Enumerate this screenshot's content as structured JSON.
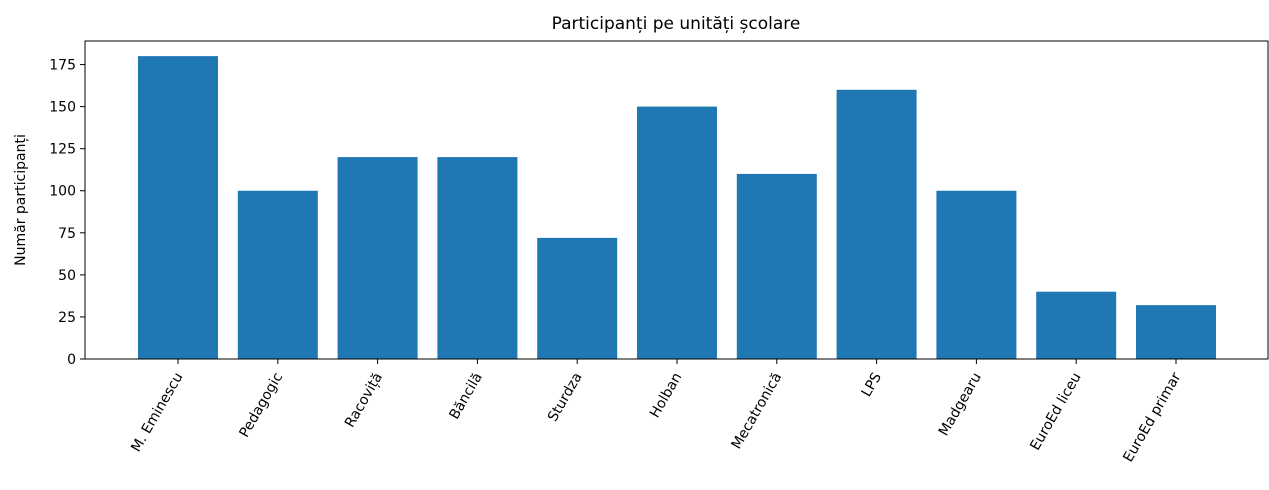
{
  "chart_data": {
    "type": "bar",
    "title": "Participanți pe unități școlare",
    "xlabel": "",
    "ylabel": "Număr participanți",
    "categories": [
      "M. Eminescu",
      "Pedagogic",
      "Racoviță",
      "Băncilă",
      "Sturdza",
      "Holban",
      "Mecatronică",
      "LPS",
      "Madgearu",
      "EuroEd liceu",
      "EuroEd primar"
    ],
    "values": [
      180,
      100,
      120,
      120,
      72,
      150,
      110,
      160,
      100,
      40,
      32
    ],
    "ylim": [
      0,
      189
    ],
    "yticks": [
      "0",
      "25",
      "50",
      "75",
      "100",
      "125",
      "150",
      "175"
    ],
    "bar_color": "#1f77b4",
    "grid": false,
    "legend": "none"
  }
}
